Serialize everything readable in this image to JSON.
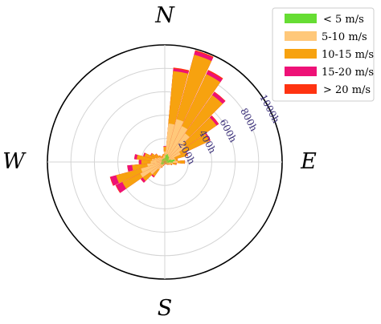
{
  "chart_data": {
    "type": "wind-rose",
    "title": "",
    "compass": {
      "north": "N",
      "east": "E",
      "south": "S",
      "west": "W"
    },
    "radial": {
      "max": 1000,
      "ticks": [
        200,
        400,
        600,
        800,
        1000
      ],
      "tick_labels": [
        "200h",
        "400h",
        "600h",
        "800h",
        "1000h"
      ]
    },
    "grid": true,
    "legend_position": "top-right",
    "series": [
      {
        "name": "< 5 m/s",
        "color": "#66dd33"
      },
      {
        "name": "5-10 m/s",
        "color": "#ffc87a"
      },
      {
        "name": "10-15 m/s",
        "color": "#f7a20f"
      },
      {
        "name": "15-20 m/s",
        "color": "#ee1177"
      },
      {
        "name": "> 20 m/s",
        "color": "#ff3311"
      }
    ],
    "sectors_deg": [
      0,
      10,
      20,
      30,
      40,
      50,
      60,
      70,
      80,
      90,
      100,
      110,
      120,
      130,
      140,
      150,
      160,
      170,
      180,
      190,
      200,
      210,
      220,
      230,
      240,
      250,
      260,
      270,
      280,
      290,
      300,
      310,
      320,
      330,
      340,
      350
    ],
    "cumulative_hours": [
      [
        35,
        90,
        130,
        135,
        135
      ],
      [
        60,
        330,
        780,
        800,
        810
      ],
      [
        70,
        380,
        950,
        980,
        990
      ],
      [
        60,
        340,
        830,
        860,
        870
      ],
      [
        55,
        300,
        700,
        730,
        735
      ],
      [
        45,
        220,
        540,
        560,
        565
      ],
      [
        35,
        150,
        420,
        430,
        432
      ],
      [
        55,
        90,
        200,
        205,
        205
      ],
      [
        85,
        95,
        110,
        112,
        112
      ],
      [
        70,
        110,
        170,
        172,
        172
      ],
      [
        35,
        70,
        100,
        102,
        102
      ],
      [
        25,
        50,
        65,
        66,
        66
      ],
      [
        20,
        35,
        45,
        45,
        45
      ],
      [
        15,
        28,
        36,
        36,
        36
      ],
      [
        12,
        22,
        28,
        28,
        28
      ],
      [
        10,
        18,
        22,
        22,
        22
      ],
      [
        10,
        16,
        20,
        20,
        20
      ],
      [
        10,
        16,
        20,
        20,
        20
      ],
      [
        10,
        16,
        20,
        20,
        20
      ],
      [
        12,
        20,
        26,
        26,
        26
      ],
      [
        15,
        28,
        36,
        36,
        36
      ],
      [
        18,
        40,
        55,
        56,
        56
      ],
      [
        25,
        80,
        150,
        160,
        162
      ],
      [
        30,
        150,
        230,
        250,
        252
      ],
      [
        35,
        230,
        400,
        460,
        465
      ],
      [
        35,
        210,
        430,
        480,
        485
      ],
      [
        30,
        150,
        280,
        320,
        322
      ],
      [
        28,
        120,
        200,
        220,
        222
      ],
      [
        25,
        110,
        240,
        260,
        262
      ],
      [
        25,
        90,
        180,
        190,
        191
      ],
      [
        28,
        70,
        130,
        135,
        135
      ],
      [
        30,
        60,
        100,
        102,
        102
      ],
      [
        30,
        50,
        70,
        71,
        71
      ],
      [
        30,
        40,
        55,
        55,
        55
      ],
      [
        30,
        45,
        60,
        60,
        60
      ],
      [
        30,
        55,
        70,
        70,
        70
      ]
    ]
  }
}
